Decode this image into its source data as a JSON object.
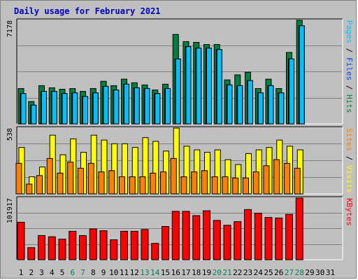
{
  "title": "Daily usage for February 2021",
  "days": [
    "1",
    "2",
    "3",
    "4",
    "5",
    "6",
    "7",
    "8",
    "9",
    "10",
    "11",
    "12",
    "13",
    "14",
    "15",
    "16",
    "17",
    "18",
    "19",
    "20",
    "21",
    "22",
    "23",
    "24",
    "25",
    "26",
    "27",
    "28",
    "29",
    "30",
    "31"
  ],
  "weekend_days": [
    6,
    7,
    13,
    14,
    20,
    21,
    27,
    28
  ],
  "colors": {
    "hits": "#008040",
    "files": "#0040ff",
    "pages": "#00c0ff",
    "visits": "#ffff00",
    "sites": "#ff8000",
    "kbytes": "#ff0000",
    "weekday": "#000000",
    "weekend": "#00805c"
  },
  "chart_data": [
    {
      "type": "bar",
      "name": "hits-files-pages",
      "ylabel_parts": [
        {
          "text": "Pages",
          "color": "#00c0ff"
        },
        {
          "text": " / ",
          "color": "#000000"
        },
        {
          "text": "Files",
          "color": "#0040ff"
        },
        {
          "text": " / ",
          "color": "#000000"
        },
        {
          "text": "Hits",
          "color": "#008040"
        }
      ],
      "max_label": "7178",
      "ymax": 7178,
      "series": [
        {
          "name": "Hits",
          "color": "#008040",
          "values": [
            2450,
            1550,
            2650,
            2500,
            2400,
            2450,
            2250,
            2450,
            2950,
            2650,
            3100,
            2850,
            2700,
            2350,
            2750,
            6200,
            5700,
            5650,
            5500,
            5500,
            3050,
            3400,
            3580,
            2450,
            3100,
            2450,
            4950,
            7178
          ]
        },
        {
          "name": "Files",
          "color": "#0040ff",
          "values": [
            2100,
            1300,
            2250,
            2250,
            2100,
            2150,
            1900,
            2150,
            2600,
            2350,
            2750,
            2500,
            2450,
            2100,
            2450,
            4500,
            5350,
            5250,
            5250,
            5150,
            2700,
            2650,
            3000,
            2150,
            2650,
            2150,
            4500,
            6800
          ]
        },
        {
          "name": "Pages",
          "color": "#00c0ff",
          "values": [
            2100,
            1300,
            2250,
            2250,
            2100,
            2150,
            1900,
            2150,
            2600,
            2350,
            2750,
            2500,
            2450,
            2100,
            2450,
            4500,
            5350,
            5250,
            5250,
            5150,
            2700,
            2650,
            3000,
            2150,
            2650,
            2150,
            4500,
            6800
          ]
        }
      ]
    },
    {
      "type": "bar",
      "name": "visits-sites",
      "ylabel_parts": [
        {
          "text": "Sites",
          "color": "#ff8000"
        },
        {
          "text": " / ",
          "color": "#000000"
        },
        {
          "text": "Visits",
          "color": "#ffff00"
        }
      ],
      "max_label": "538",
      "ymax": 538,
      "series": [
        {
          "name": "Visits",
          "color": "#ffff00",
          "values": [
            380,
            140,
            220,
            480,
            320,
            450,
            340,
            480,
            440,
            410,
            410,
            380,
            460,
            430,
            350,
            538,
            390,
            360,
            340,
            360,
            280,
            240,
            330,
            360,
            380,
            440,
            390,
            360
          ]
        },
        {
          "name": "Sites",
          "color": "#ff8000",
          "values": [
            250,
            80,
            150,
            290,
            170,
            260,
            210,
            250,
            180,
            190,
            140,
            140,
            140,
            170,
            180,
            290,
            140,
            180,
            190,
            140,
            140,
            130,
            130,
            180,
            230,
            280,
            250,
            210
          ]
        }
      ]
    },
    {
      "type": "bar",
      "name": "kbytes",
      "ylabel_parts": [
        {
          "text": "KBytes",
          "color": "#ff0000"
        }
      ],
      "max_label": "101917",
      "ymax": 101917,
      "series": [
        {
          "name": "KBytes",
          "color": "#ff0000",
          "values": [
            62000,
            20000,
            40000,
            38000,
            34000,
            47000,
            40000,
            51000,
            48000,
            33000,
            47000,
            47000,
            50000,
            27000,
            55000,
            80000,
            80000,
            73000,
            81000,
            65000,
            57000,
            63000,
            83000,
            77000,
            70000,
            69000,
            75000,
            101917
          ]
        }
      ]
    }
  ]
}
